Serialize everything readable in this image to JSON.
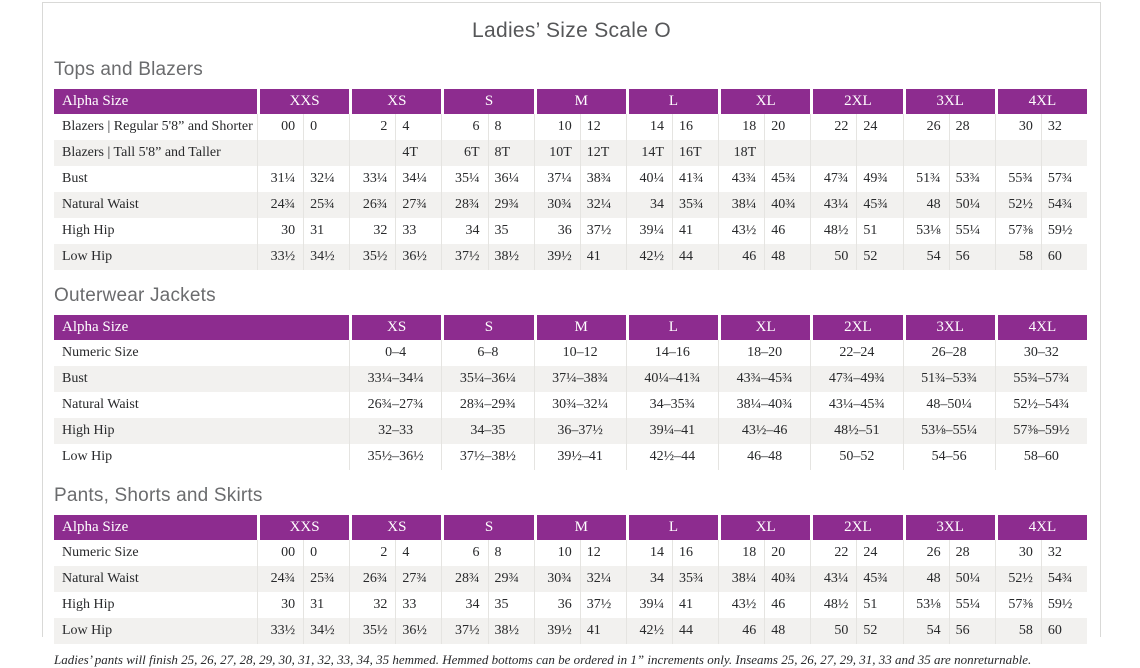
{
  "page": {
    "title": "Ladies’ Size Scale O",
    "footnote": "Ladies’ pants will finish 25, 26, 27, 28, 29, 30, 31, 32, 33, 34, 35 hemmed. Hemmed bottoms can be ordered in 1” increments only. Inseams 25, 26, 27, 29, 31, 33 and 35 are nonreturnable."
  },
  "colors": {
    "header_purple": "#8d2c8f",
    "row_alt": "#f2f1ef",
    "divider": "#e5e4e1",
    "heading_gray": "#6b6c6e",
    "title_gray": "#565759"
  },
  "tables": [
    {
      "section": "Tops and Blazers",
      "type": "split",
      "header_label": "Alpha Size",
      "groups": [
        "XXS",
        "XS",
        "S",
        "M",
        "L",
        "XL",
        "2XL",
        "3XL",
        "4XL"
      ],
      "rows": [
        {
          "label": "Blazers | Regular 5'8” and Shorter",
          "values": [
            "00",
            "0",
            "2",
            "4",
            "6",
            "8",
            "10",
            "12",
            "14",
            "16",
            "18",
            "20",
            "22",
            "24",
            "26",
            "28",
            "30",
            "32"
          ]
        },
        {
          "label": "Blazers | Tall 5'8” and Taller",
          "values": [
            "",
            "",
            "",
            "4T",
            "6T",
            "8T",
            "10T",
            "12T",
            "14T",
            "16T",
            "18T",
            "",
            "",
            "",
            "",
            "",
            "",
            ""
          ]
        },
        {
          "label": "Bust",
          "values": [
            "31¼",
            "32¼",
            "33¼",
            "34¼",
            "35¼",
            "36¼",
            "37¼",
            "38¾",
            "40¼",
            "41¾",
            "43¾",
            "45¾",
            "47¾",
            "49¾",
            "51¾",
            "53¾",
            "55¾",
            "57¾"
          ]
        },
        {
          "label": "Natural Waist",
          "values": [
            "24¾",
            "25¾",
            "26¾",
            "27¾",
            "28¾",
            "29¾",
            "30¾",
            "32¼",
            "34",
            "35¾",
            "38¼",
            "40¾",
            "43¼",
            "45¾",
            "48",
            "50¼",
            "52½",
            "54¾"
          ]
        },
        {
          "label": "High Hip",
          "values": [
            "30",
            "31",
            "32",
            "33",
            "34",
            "35",
            "36",
            "37½",
            "39¼",
            "41",
            "43½",
            "46",
            "48½",
            "51",
            "53⅛",
            "55¼",
            "57⅜",
            "59½"
          ]
        },
        {
          "label": "Low Hip",
          "values": [
            "33½",
            "34½",
            "35½",
            "36½",
            "37½",
            "38½",
            "39½",
            "41",
            "42½",
            "44",
            "46",
            "48",
            "50",
            "52",
            "54",
            "56",
            "58",
            "60"
          ]
        }
      ]
    },
    {
      "section": "Outerwear Jackets",
      "type": "range",
      "header_label": "Alpha Size",
      "groups": [
        "XS",
        "S",
        "M",
        "L",
        "XL",
        "2XL",
        "3XL",
        "4XL"
      ],
      "rows": [
        {
          "label": "Numeric Size",
          "values": [
            "0–4",
            "6–8",
            "10–12",
            "14–16",
            "18–20",
            "22–24",
            "26–28",
            "30–32"
          ]
        },
        {
          "label": "Bust",
          "values": [
            "33¼–34¼",
            "35¼–36¼",
            "37¼–38¾",
            "40¼–41¾",
            "43¾–45¾",
            "47¾–49¾",
            "51¾–53¾",
            "55¾–57¾"
          ]
        },
        {
          "label": "Natural Waist",
          "values": [
            "26¾–27¾",
            "28¾–29¾",
            "30¾–32¼",
            "34–35¾",
            "38¼–40¾",
            "43¼–45¾",
            "48–50¼",
            "52½–54¾"
          ]
        },
        {
          "label": "High Hip",
          "values": [
            "32–33",
            "34–35",
            "36–37½",
            "39¼–41",
            "43½–46",
            "48½–51",
            "53⅛–55¼",
            "57⅜–59½"
          ]
        },
        {
          "label": "Low Hip",
          "values": [
            "35½–36½",
            "37½–38½",
            "39½–41",
            "42½–44",
            "46–48",
            "50–52",
            "54–56",
            "58–60"
          ]
        }
      ]
    },
    {
      "section": "Pants, Shorts and Skirts",
      "type": "split",
      "header_label": "Alpha Size",
      "groups": [
        "XXS",
        "XS",
        "S",
        "M",
        "L",
        "XL",
        "2XL",
        "3XL",
        "4XL"
      ],
      "rows": [
        {
          "label": "Numeric Size",
          "values": [
            "00",
            "0",
            "2",
            "4",
            "6",
            "8",
            "10",
            "12",
            "14",
            "16",
            "18",
            "20",
            "22",
            "24",
            "26",
            "28",
            "30",
            "32"
          ]
        },
        {
          "label": "Natural Waist",
          "values": [
            "24¾",
            "25¾",
            "26¾",
            "27¾",
            "28¾",
            "29¾",
            "30¾",
            "32¼",
            "34",
            "35¾",
            "38¼",
            "40¾",
            "43¼",
            "45¾",
            "48",
            "50¼",
            "52½",
            "54¾"
          ]
        },
        {
          "label": "High Hip",
          "values": [
            "30",
            "31",
            "32",
            "33",
            "34",
            "35",
            "36",
            "37½",
            "39¼",
            "41",
            "43½",
            "46",
            "48½",
            "51",
            "53⅛",
            "55¼",
            "57⅜",
            "59½"
          ]
        },
        {
          "label": "Low Hip",
          "values": [
            "33½",
            "34½",
            "35½",
            "36½",
            "37½",
            "38½",
            "39½",
            "41",
            "42½",
            "44",
            "46",
            "48",
            "50",
            "52",
            "54",
            "56",
            "58",
            "60"
          ]
        }
      ]
    }
  ]
}
